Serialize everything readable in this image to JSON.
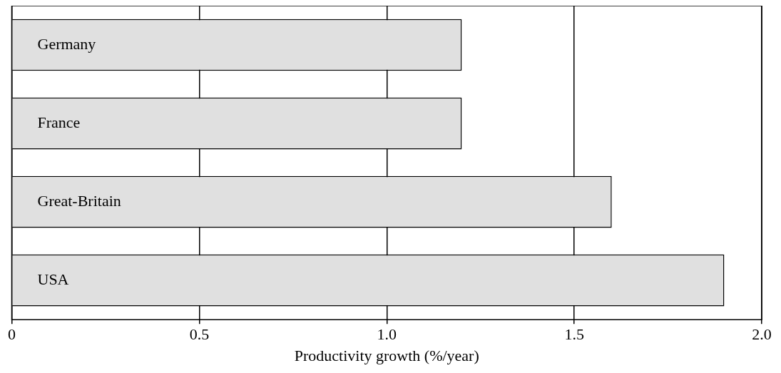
{
  "chart_data": {
    "type": "bar",
    "orientation": "horizontal",
    "xlabel": "Productivity growth (%/year)",
    "categories": [
      "Germany",
      "France",
      "Great-Britain",
      "USA"
    ],
    "values": [
      1.2,
      1.2,
      1.6,
      1.9
    ],
    "color": "#e0e0e0",
    "xlim": [
      0,
      2.0
    ],
    "xticks": [
      0,
      0.5,
      {
        "value": 1.0,
        "label": "1.0"
      },
      1.5,
      {
        "value": 2.0,
        "label": "2.0"
      }
    ],
    "grid": "x"
  }
}
